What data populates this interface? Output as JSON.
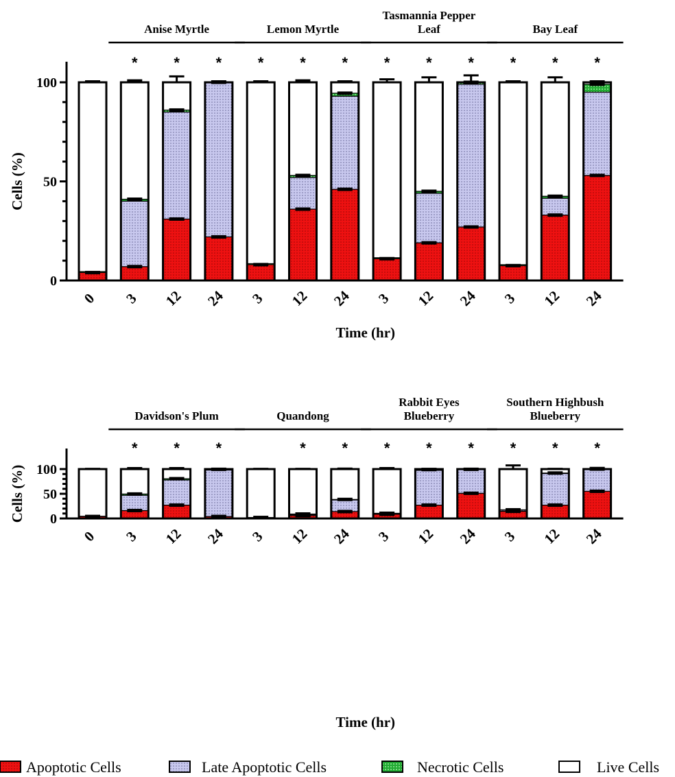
{
  "colors": {
    "apoptotic": "#ee1111",
    "late": "#c8c8ee",
    "necrotic": "#22aa33",
    "live": "#ffffff"
  },
  "legend": {
    "apoptotic": "Apoptotic Cells",
    "late": "Late Apoptotic Cells",
    "necrotic": "Necrotic Cells",
    "live": "Live Cells"
  },
  "chart_data": [
    {
      "type": "bar",
      "stacked": true,
      "ylabel": "Cells (%)",
      "xlabel": "Time (hr)",
      "ylim": [
        0,
        100
      ],
      "yticks": [
        0,
        50,
        100
      ],
      "categories": [
        "0",
        "3",
        "12",
        "24",
        "3",
        "12",
        "24",
        "3",
        "12",
        "24",
        "3",
        "12",
        "24"
      ],
      "groups": [
        {
          "label": "Anise Myrtle",
          "bars": [
            1,
            3
          ]
        },
        {
          "label": "Lemon Myrtle",
          "bars": [
            4,
            6
          ]
        },
        {
          "label": "Tasmannia Pepper Leaf",
          "bars": [
            7,
            9
          ]
        },
        {
          "label": "Bay Leaf",
          "bars": [
            10,
            12
          ]
        }
      ],
      "significant": [
        false,
        true,
        true,
        true,
        true,
        true,
        true,
        true,
        true,
        true,
        true,
        true,
        true
      ],
      "series": [
        {
          "name": "Apoptotic Cells",
          "values": [
            4,
            7,
            31,
            22,
            8,
            36,
            46,
            11,
            19,
            27,
            7.5,
            33,
            53
          ]
        },
        {
          "name": "Late Apoptotic Cells",
          "values": [
            0,
            33,
            54,
            78,
            0,
            16,
            47,
            0,
            25,
            72,
            0,
            8.5,
            42
          ]
        },
        {
          "name": "Necrotic Cells",
          "values": [
            0.5,
            1,
            1,
            0,
            0.5,
            1,
            1.5,
            0.5,
            1,
            1,
            0.5,
            1,
            4
          ]
        },
        {
          "name": "Live Cells",
          "values": [
            95.5,
            59,
            14,
            0,
            91.5,
            47,
            5.5,
            88.5,
            55,
            0,
            92,
            57.5,
            1
          ]
        }
      ],
      "errors_top": [
        0.5,
        1,
        3,
        0.5,
        0.5,
        1,
        0.5,
        1.5,
        2.5,
        3.5,
        0.5,
        2.5,
        0.5
      ]
    },
    {
      "type": "bar",
      "stacked": true,
      "ylabel": "Cells (%)",
      "xlabel": "Time (hr)",
      "ylim": [
        0,
        100
      ],
      "yticks": [
        0,
        50,
        100
      ],
      "categories": [
        "0",
        "3",
        "12",
        "24",
        "3",
        "12",
        "24",
        "3",
        "12",
        "24",
        "3",
        "12",
        "24"
      ],
      "groups": [
        {
          "label": "Davidson's Plum",
          "bars": [
            1,
            3
          ]
        },
        {
          "label": "Quandong",
          "bars": [
            4,
            6
          ]
        },
        {
          "label": "Rabbit Eyes Blueberry",
          "bars": [
            7,
            9
          ]
        },
        {
          "label": "Southern Highbush Blueberry",
          "bars": [
            10,
            12
          ]
        }
      ],
      "significant": [
        false,
        true,
        true,
        true,
        false,
        true,
        true,
        true,
        true,
        true,
        true,
        true,
        true
      ],
      "series": [
        {
          "name": "Apoptotic Cells",
          "values": [
            4,
            16,
            27,
            4,
            2,
            6,
            14,
            8.5,
            27,
            51,
            14.5,
            27,
            55
          ]
        },
        {
          "name": "Late Apoptotic Cells",
          "values": [
            0,
            31,
            51,
            94,
            0,
            2,
            23.5,
            1.5,
            70.5,
            48,
            2.5,
            64,
            45
          ]
        },
        {
          "name": "Necrotic Cells",
          "values": [
            0.5,
            2.5,
            2.5,
            1.5,
            0,
            1,
            1,
            0.5,
            1.5,
            0.5,
            0.5,
            1,
            0
          ]
        },
        {
          "name": "Live Cells",
          "values": [
            95.5,
            50.5,
            19.5,
            0.5,
            98,
            91,
            61.5,
            89.5,
            1,
            0.5,
            82.5,
            8,
            0
          ]
        }
      ],
      "errors_top": [
        0.5,
        2,
        2,
        0.5,
        0.5,
        0.5,
        1,
        2,
        0.5,
        0.5,
        7.5,
        0.5,
        2.5
      ]
    }
  ],
  "panel_labels": {
    "top_groups": [
      "Anise Myrtle",
      "Lemon Myrtle",
      "Tasmannia Pepper\nLeaf",
      "Bay Leaf"
    ],
    "bottom_groups": [
      "Davidson's Plum",
      "Quandong",
      "Rabbit Eyes\nBlueberry",
      "Southern Highbush\nBlueberry"
    ]
  },
  "star": "*"
}
